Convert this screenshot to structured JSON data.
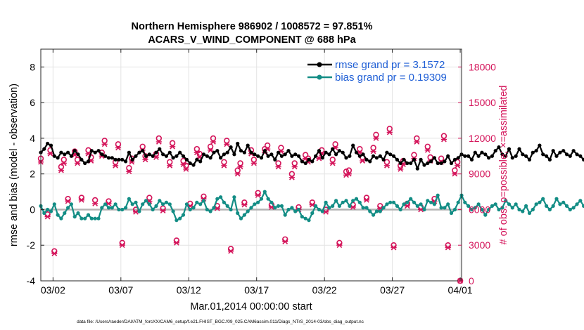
{
  "chart_data": {
    "type": "line",
    "title": [
      "Northern Hemisphere 986902 / 1008572 = 97.851%",
      "ACARS_V_WIND_COMPONENT @ 688 hPa"
    ],
    "xlabel": "Mar.01,2014 00:00:00 start",
    "ylabel_left": "rmse and bias (model - observation)",
    "ylabel_right": "# of obs: o=possible; ×=assimilated",
    "x_ticks": [
      "03/02",
      "03/07",
      "03/12",
      "03/17",
      "03/22",
      "03/27",
      "04/01"
    ],
    "x_tick_days": [
      1,
      6,
      11,
      16,
      21,
      26,
      31
    ],
    "xlim_days": [
      0.1,
      31.1
    ],
    "ylim_left": [
      -4,
      9
    ],
    "yticks_left": [
      "-4",
      "-2",
      "0",
      "2",
      "4",
      "6",
      "8"
    ],
    "ylim_right": [
      0,
      19500
    ],
    "yticks_right": [
      "0",
      "3000",
      "6000",
      "9000",
      "12000",
      "15000",
      "18000"
    ],
    "grid": true,
    "zero_line": 0,
    "legend_position": "top-right",
    "series": [
      {
        "name": "rmse grand pr = 3.1572",
        "color": "#000000",
        "axis": "left",
        "x_start_day": 0.1,
        "x_step_day": 0.25,
        "values": [
          3.2,
          3.4,
          3.7,
          3.6,
          3.0,
          2.9,
          3.2,
          3.1,
          3.2,
          3.0,
          3.3,
          3.1,
          2.8,
          2.6,
          2.7,
          3.3,
          3.2,
          3.3,
          3.1,
          3.0,
          2.9,
          2.9,
          2.8,
          2.8,
          2.8,
          2.7,
          3.2,
          2.8,
          3.0,
          3.2,
          3.3,
          3.0,
          3.1,
          3.0,
          3.2,
          3.4,
          3.1,
          3.0,
          3.2,
          2.9,
          3.0,
          3.2,
          3.0,
          2.8,
          2.6,
          2.5,
          2.8,
          2.7,
          3.1,
          3.0,
          2.9,
          3.2,
          3.3,
          2.9,
          3.1,
          3.2,
          3.5,
          3.1,
          3.7,
          3.3,
          3.2,
          3.6,
          3.2,
          3.1,
          3.0,
          2.9,
          3.3,
          3.0,
          3.1,
          2.8,
          3.2,
          3.0,
          3.1,
          3.3,
          3.0,
          3.1,
          3.0,
          2.7,
          2.6,
          2.8,
          2.7,
          3.0,
          3.3,
          2.9,
          3.2,
          3.1,
          3.4,
          3.1,
          3.3,
          3.2,
          2.9,
          3.0,
          3.6,
          3.2,
          3.0,
          3.1,
          2.8,
          2.7,
          3.0,
          2.9,
          3.0,
          2.8,
          3.2,
          3.1,
          3.0,
          2.8,
          2.6,
          2.8,
          2.6,
          2.6,
          2.8,
          2.3,
          2.8,
          2.5,
          2.6,
          2.7,
          2.9,
          2.6,
          2.6,
          2.7,
          3.0,
          2.6,
          2.8,
          2.9,
          3.1,
          3.0,
          3.0,
          2.8,
          3.2,
          3.0,
          3.2,
          3.1,
          2.9,
          3.0,
          3.3,
          3.5,
          3.1,
          3.0,
          3.4,
          2.9,
          3.0,
          3.4,
          3.1,
          3.0,
          2.8,
          3.2,
          3.3,
          3.6,
          3.1,
          3.0,
          2.8,
          3.3,
          3.0,
          3.2,
          3.3,
          3.1,
          3.0,
          3.3,
          3.1,
          3.0,
          2.8,
          2.9,
          3.2,
          3.6,
          3.3,
          3.1,
          2.7,
          2.8,
          3.0,
          3.1,
          3.3,
          2.9,
          3.2,
          3.5,
          3.3,
          3.1,
          3.0,
          3.5,
          3.0,
          3.3,
          3.1,
          2.9,
          3.2,
          2.8,
          3.0,
          2.7,
          3.7,
          3.5,
          3.2,
          2.9,
          3.3,
          3.2,
          3.4,
          3.0,
          3.2,
          3.2,
          3.1,
          3.0,
          3.1,
          2.9,
          2.9,
          3.0,
          3.1,
          3.3,
          3.0,
          3.1,
          3.2,
          2.9,
          3.0,
          3.1,
          2.9,
          3.3,
          3.1,
          3.4,
          3.0,
          3.5,
          3.2,
          3.1,
          3.3,
          3.6,
          3.5,
          3.3,
          3.2,
          2.9,
          3.1,
          3.5,
          3.0,
          3.4,
          3.8,
          3.4,
          3.2,
          3.5,
          3.1,
          3.0,
          3.8,
          3.6,
          3.4,
          3.1,
          3.0,
          3.3,
          3.2,
          3.1,
          3.8,
          3.3,
          3.4,
          3.0,
          3.2,
          3.1,
          3.0,
          2.9,
          3.1,
          3.7,
          3.4,
          3.1,
          3.0,
          3.5,
          3.3,
          3.1,
          3.8,
          3.5,
          3.3,
          3.0,
          2.8,
          3.4,
          3.3,
          3.2,
          2.9,
          3.4,
          3.0,
          3.5,
          3.1,
          3.0
        ]
      },
      {
        "name": "bias grand pr = 0.19309",
        "color": "#138d85",
        "axis": "left",
        "x_start_day": 0.1,
        "x_step_day": 0.25,
        "values": [
          0.2,
          -0.2,
          0.0,
          -0.1,
          0.3,
          -0.3,
          -0.5,
          -0.2,
          0.1,
          0.3,
          -0.4,
          -0.2,
          -0.5,
          -0.5,
          -0.3,
          -0.5,
          -0.5,
          -0.5,
          0.1,
          0.3,
          0.1,
          0.1,
          0.3,
          0.0,
          0.0,
          0.1,
          0.6,
          0.3,
          0.4,
          -0.1,
          0.3,
          0.5,
          0.3,
          0.0,
          0.2,
          0.5,
          0.3,
          0.4,
          0.3,
          -0.1,
          -0.6,
          -0.5,
          -0.3,
          0.3,
          0.0,
          0.1,
          0.4,
          0.3,
          0.5,
          0.0,
          -0.1,
          0.1,
          0.6,
          0.7,
          0.4,
          0.2,
          0.0,
          0.7,
          -0.2,
          -0.5,
          -0.3,
          -0.1,
          0.1,
          0.3,
          0.4,
          0.6,
          1.0,
          0.6,
          0.4,
          0.1,
          0.2,
          0.2,
          -0.3,
          0.0,
          0.1,
          -0.1,
          0.0,
          -0.4,
          -0.5,
          -0.6,
          -0.2,
          0.2,
          0.0,
          -0.1,
          0.4,
          0.1,
          0.2,
          0.5,
          0.2,
          0.4,
          0.5,
          0.2,
          0.5,
          0.6,
          0.4,
          0.1,
          0.1,
          -0.1,
          -0.3,
          -0.1,
          -0.1,
          0.1,
          0.3,
          0.4,
          0.4,
          0.2,
          0.0,
          0.3,
          0.4,
          0.6,
          0.4,
          0.2,
          0.3,
          0.0,
          0.5,
          0.4,
          0.3,
          0.8,
          0.1,
          0.1,
          0.3,
          -0.2,
          0.0,
          0.4,
          0.8,
          0.4,
          0.2,
          0.0,
          0.1,
          0.3,
          0.0,
          -0.3,
          0.0,
          0.2,
          0.3,
          0.0,
          0.1,
          0.5,
          0.3,
          0.1,
          0.3,
          0.0,
          -0.1,
          0.2,
          -0.2,
          0.0,
          0.3,
          0.4,
          0.6,
          0.2,
          0.0,
          0.2,
          0.6,
          0.3,
          0.4,
          0.2,
          0.0,
          0.1,
          0.3,
          0.5,
          0.2,
          0.0,
          -0.1,
          -0.2,
          0.1,
          0.0,
          -0.2,
          0.0,
          0.0,
          0.2,
          0.6,
          0.2,
          0.0,
          0.0,
          0.4,
          0.0,
          0.0,
          0.2,
          0.0,
          0.3,
          0.4,
          0.3,
          0.0,
          0.5,
          0.3,
          0.6,
          0.5,
          0.3,
          0.1,
          0.0,
          0.2,
          0.6,
          0.0,
          -0.2,
          0.3,
          0.5,
          0.0,
          -0.1,
          0.0,
          0.1,
          0.4,
          0.2,
          -0.1,
          0.1,
          0.4,
          0.0,
          0.2,
          0.1,
          0.3,
          0.4,
          0.2,
          0.0,
          0.3,
          0.1,
          0.0,
          0.2,
          0.4,
          0.1,
          0.2,
          0.5,
          0.4,
          0.2,
          0.0,
          0.3,
          0.6,
          0.4,
          0.7,
          0.3,
          0.6,
          0.2,
          0.4,
          0.9,
          0.3,
          0.7,
          0.2,
          0.5,
          0.9,
          0.4,
          0.1,
          0.4,
          0.3,
          0.8,
          0.5,
          1.0,
          0.4,
          0.2,
          0.1,
          0.9,
          0.5,
          0.7,
          0.3,
          0.0,
          0.2,
          0.4,
          0.1,
          0.9,
          0.7,
          0.5,
          0.2,
          -0.3,
          0.4,
          0.1,
          -0.3,
          -0.3,
          -0.4,
          -0.4,
          -0.6
        ]
      },
      {
        "name": "possible",
        "marker": "o",
        "color": "#d4145a",
        "axis": "right",
        "x": [
          0.1,
          0.6,
          0.8,
          1.1,
          1.6,
          1.8,
          2.1,
          2.6,
          2.8,
          3.1,
          3.6,
          3.8,
          4.1,
          4.6,
          4.8,
          5.1,
          5.6,
          5.8,
          6.1,
          6.6,
          6.8,
          7.1,
          7.6,
          7.8,
          8.1,
          8.6,
          8.8,
          9.1,
          9.6,
          9.8,
          10.1,
          10.6,
          10.8,
          11.1,
          11.6,
          11.8,
          12.1,
          12.6,
          12.8,
          13.1,
          13.6,
          13.8,
          14.1,
          14.6,
          14.8,
          15.1,
          15.6,
          15.8,
          16.1,
          16.6,
          16.8,
          17.1,
          17.6,
          17.8,
          18.1,
          18.6,
          18.8,
          19.1,
          19.6,
          19.8,
          20.1,
          20.6,
          20.8,
          21.1,
          21.6,
          21.8,
          22.1,
          22.6,
          22.8,
          23.1,
          23.6,
          23.8,
          24.1,
          24.6,
          24.8,
          25.1,
          25.6,
          25.8,
          26.1,
          26.6,
          26.8,
          27.1,
          27.6,
          27.8,
          28.1,
          28.6,
          28.8,
          29.1,
          29.6,
          29.8,
          30.1,
          30.6,
          30.8,
          31.0
        ],
        "values": [
          10300,
          5600,
          11000,
          2500,
          9600,
          10200,
          6900,
          10900,
          10200,
          7000,
          11000,
          10400,
          6800,
          10800,
          11800,
          6700,
          10000,
          11500,
          3200,
          9500,
          10300,
          6000,
          11300,
          10500,
          7000,
          10700,
          12000,
          6100,
          10000,
          11600,
          3400,
          10100,
          9700,
          6500,
          11100,
          10700,
          7100,
          11300,
          12000,
          6300,
          10000,
          11800,
          2700,
          9300,
          9900,
          6600,
          11000,
          10200,
          7400,
          11100,
          11400,
          6400,
          9900,
          11200,
          3500,
          9000,
          9900,
          6200,
          10600,
          10300,
          6600,
          10600,
          11000,
          6000,
          10200,
          11500,
          3200,
          9200,
          9300,
          6400,
          11100,
          10400,
          7000,
          11200,
          12300,
          6300,
          10000,
          12800,
          3000,
          9700,
          10100,
          6500,
          10600,
          12000,
          6200,
          11300,
          10400,
          6900,
          10300,
          12200,
          3000,
          9300,
          10000,
          0
        ]
      },
      {
        "name": "assimilated",
        "marker": "×",
        "color": "#d4145a",
        "axis": "right",
        "x": [
          0.1,
          0.6,
          0.8,
          1.1,
          1.6,
          1.8,
          2.1,
          2.6,
          2.8,
          3.1,
          3.6,
          3.8,
          4.1,
          4.6,
          4.8,
          5.1,
          5.6,
          5.8,
          6.1,
          6.6,
          6.8,
          7.1,
          7.6,
          7.8,
          8.1,
          8.6,
          8.8,
          9.1,
          9.6,
          9.8,
          10.1,
          10.6,
          10.8,
          11.1,
          11.6,
          11.8,
          12.1,
          12.6,
          12.8,
          13.1,
          13.6,
          13.8,
          14.1,
          14.6,
          14.8,
          15.1,
          15.6,
          15.8,
          16.1,
          16.6,
          16.8,
          17.1,
          17.6,
          17.8,
          18.1,
          18.6,
          18.8,
          19.1,
          19.6,
          19.8,
          20.1,
          20.6,
          20.8,
          21.1,
          21.6,
          21.8,
          22.1,
          22.6,
          22.8,
          23.1,
          23.6,
          23.8,
          24.1,
          24.6,
          24.8,
          25.1,
          25.6,
          25.8,
          26.1,
          26.6,
          26.8,
          27.1,
          27.6,
          27.8,
          28.1,
          28.6,
          28.8,
          29.1,
          29.6,
          29.8,
          30.1,
          30.6,
          30.8,
          31.0
        ],
        "values": [
          10000,
          5400,
          10700,
          2300,
          9300,
          9900,
          6700,
          10600,
          9900,
          6800,
          10700,
          10100,
          6500,
          10500,
          11500,
          6500,
          9700,
          11200,
          3000,
          9200,
          10000,
          5800,
          11000,
          10200,
          6700,
          10400,
          11700,
          5900,
          9700,
          11300,
          3200,
          9800,
          9400,
          6300,
          10800,
          10400,
          6900,
          11000,
          11700,
          6100,
          9700,
          11500,
          2500,
          9000,
          9600,
          6400,
          10700,
          9900,
          7200,
          10800,
          11100,
          6200,
          9600,
          10900,
          3300,
          8700,
          9600,
          6000,
          10300,
          10000,
          6400,
          10300,
          10700,
          5800,
          9900,
          11200,
          3000,
          8900,
          9000,
          6200,
          10800,
          10100,
          6800,
          10900,
          12000,
          6100,
          9700,
          12500,
          2800,
          9400,
          9800,
          6300,
          10300,
          11700,
          6000,
          11000,
          10100,
          6700,
          10000,
          11900,
          2800,
          9000,
          9700,
          0
        ]
      }
    ]
  },
  "footer": "data file: /Users/raeder/DAI/ATM_forcXX/CAM6_setup/f.e21.FHIST_BGC.f09_025.CAM6assim.011/Diags_NTrS_2014-03/obs_diag_output.nc"
}
